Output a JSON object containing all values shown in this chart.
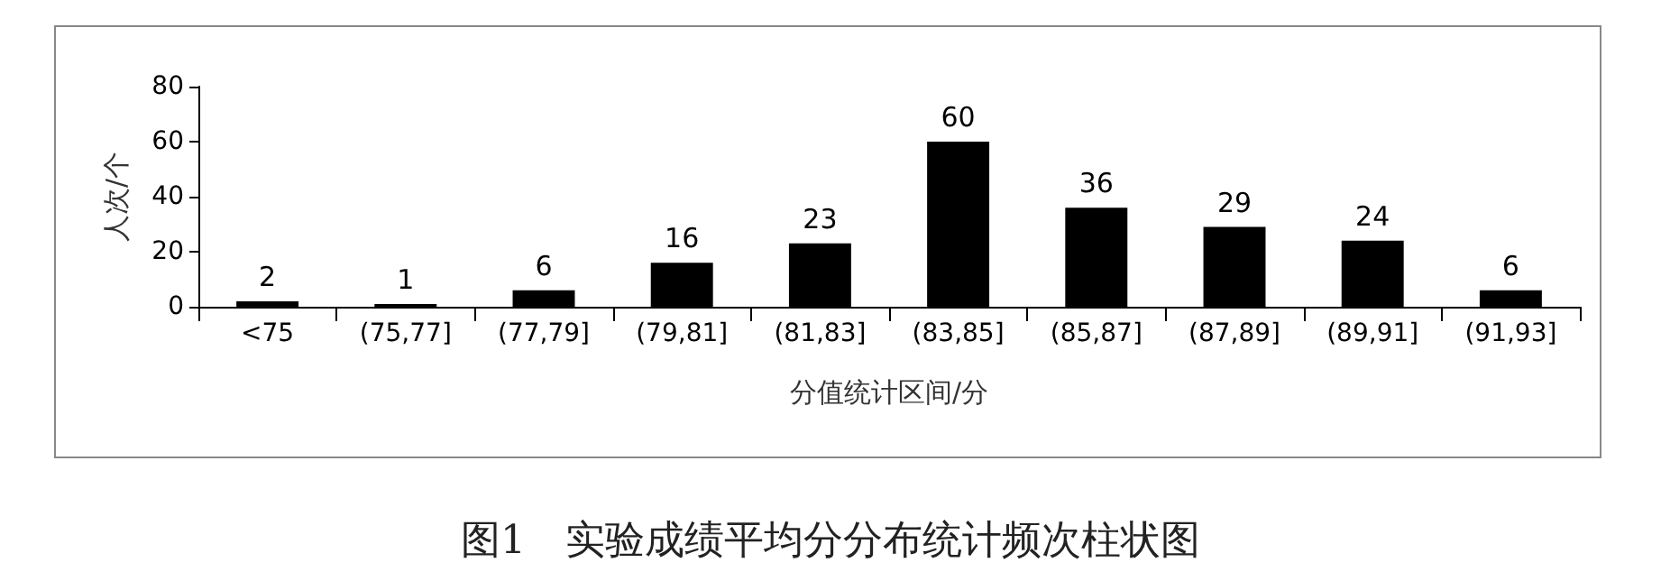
{
  "chart_data": {
    "type": "bar",
    "title": "图1　实验成绩平均分分布统计频次柱状图",
    "xlabel": "分值统计区间/分",
    "ylabel": "人次/个",
    "categories": [
      "<75",
      "(75,77]",
      "(77,79]",
      "(79,81]",
      "(81,83]",
      "(83,85]",
      "(85,87]",
      "(87,89]",
      "(89,91]",
      "(91,93]"
    ],
    "values": [
      2,
      1,
      6,
      16,
      23,
      60,
      36,
      29,
      24,
      6
    ],
    "color": "#000000",
    "ylim": [
      0,
      80
    ],
    "yticks": [
      0,
      20,
      40,
      60,
      80
    ],
    "data_labels": true
  }
}
